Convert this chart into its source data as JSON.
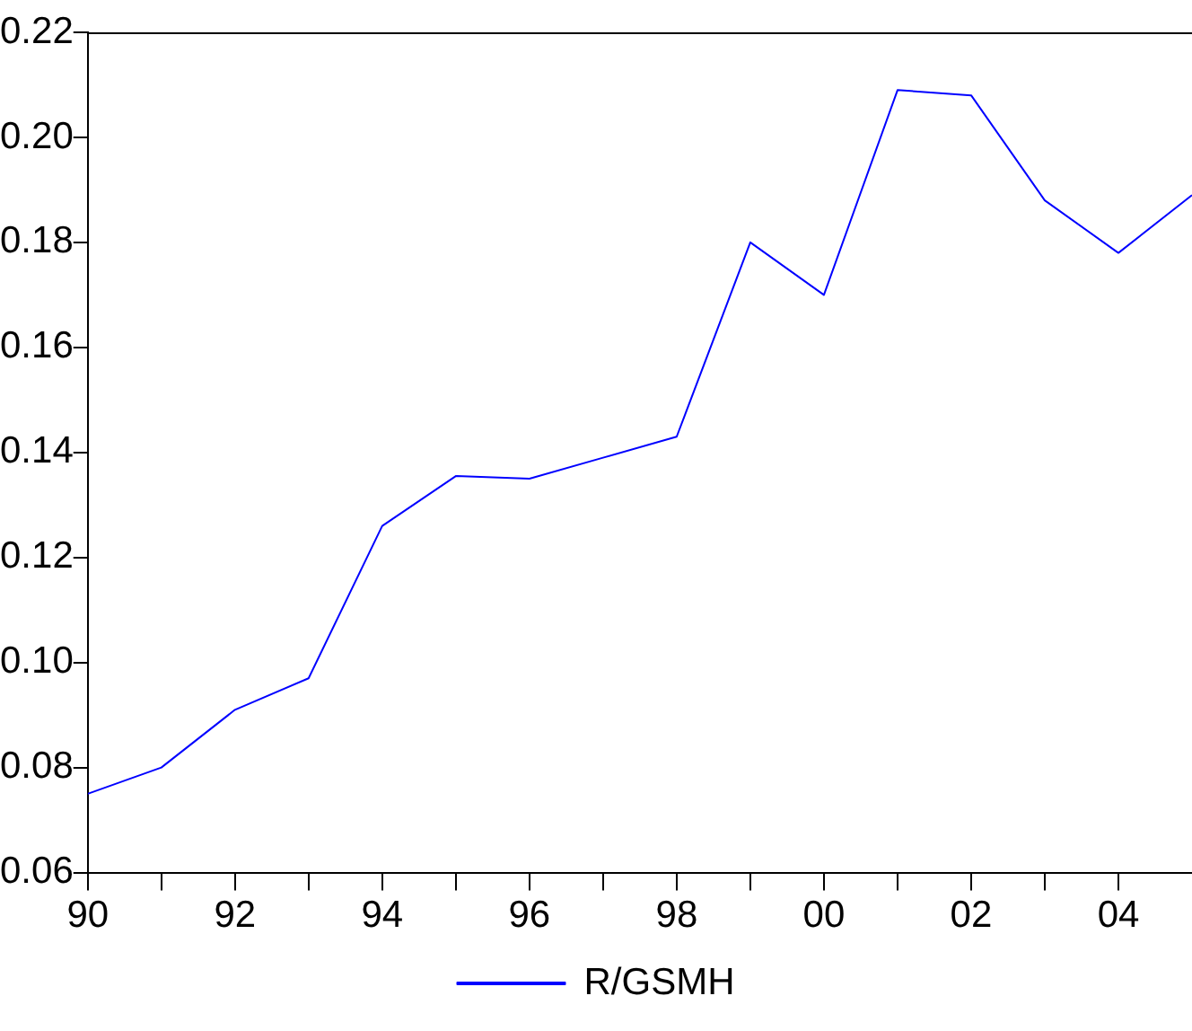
{
  "chart_data": {
    "type": "line",
    "x": [
      1990,
      1991,
      1992,
      1993,
      1994,
      1995,
      1996,
      1997,
      1998,
      1999,
      2000,
      2001,
      2002,
      2003,
      2004,
      2005
    ],
    "series": [
      {
        "name": "R/GSMH",
        "color": "#0000ff",
        "values": [
          0.075,
          0.08,
          0.091,
          0.097,
          0.126,
          0.1355,
          0.135,
          0.139,
          0.143,
          0.18,
          0.17,
          0.209,
          0.208,
          0.188,
          0.178,
          0.189
        ]
      }
    ],
    "xlim": [
      1990,
      2005
    ],
    "xticks": [
      {
        "value": 1990,
        "label": "90"
      },
      {
        "value": 1991,
        "label": null
      },
      {
        "value": 1992,
        "label": "92"
      },
      {
        "value": 1993,
        "label": null
      },
      {
        "value": 1994,
        "label": "94"
      },
      {
        "value": 1995,
        "label": null
      },
      {
        "value": 1996,
        "label": "96"
      },
      {
        "value": 1997,
        "label": null
      },
      {
        "value": 1998,
        "label": "98"
      },
      {
        "value": 1999,
        "label": null
      },
      {
        "value": 2000,
        "label": "00"
      },
      {
        "value": 2001,
        "label": null
      },
      {
        "value": 2002,
        "label": "02"
      },
      {
        "value": 2003,
        "label": null
      },
      {
        "value": 2004,
        "label": "04"
      }
    ],
    "ylim": [
      0.06,
      0.22
    ],
    "yticks": [
      {
        "value": 0.06,
        "label": "0.06"
      },
      {
        "value": 0.08,
        "label": "0.08"
      },
      {
        "value": 0.1,
        "label": "0.10"
      },
      {
        "value": 0.12,
        "label": "0.12"
      },
      {
        "value": 0.14,
        "label": "0.14"
      },
      {
        "value": 0.16,
        "label": "0.16"
      },
      {
        "value": 0.18,
        "label": "0.18"
      },
      {
        "value": 0.2,
        "label": "0.20"
      },
      {
        "value": 0.22,
        "label": "0.22"
      }
    ],
    "grid": false,
    "legend": "bottom",
    "marker": "none",
    "line_style": "solid"
  }
}
